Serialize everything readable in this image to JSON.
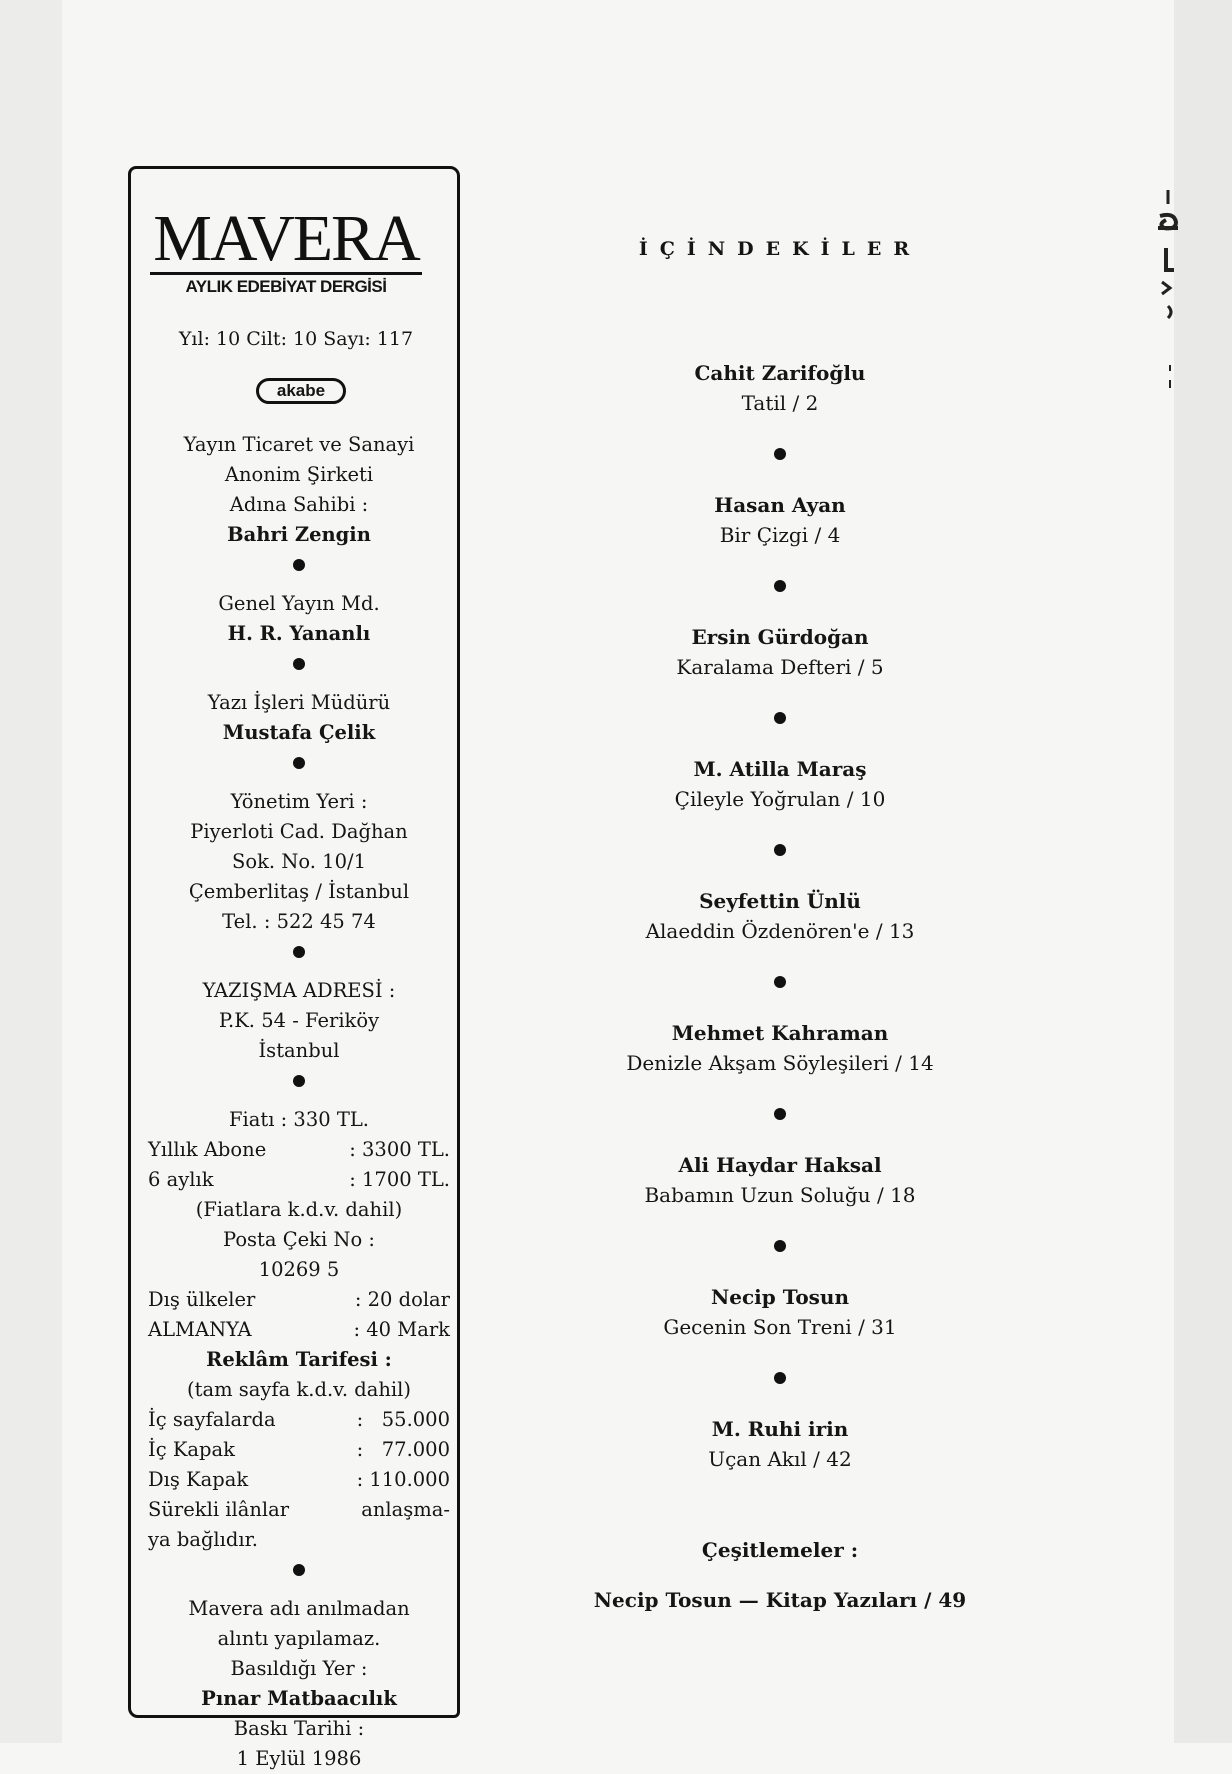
{
  "masthead": {
    "title": "MAVERA",
    "subtitle": "AYLIK EDEBİYAT DERGİSİ",
    "issue": "Yıl: 10 Cilt: 10 Sayı: 117",
    "publisher_logo": "akabe"
  },
  "colophon": {
    "lines": [
      {
        "t": "Yayın Ticaret ve Sanayi"
      },
      {
        "t": "Anonim Şirketi"
      },
      {
        "t": "Adına Sahibi :"
      },
      {
        "t": "Bahri Zengin",
        "b": true
      },
      {
        "dot": true
      },
      {
        "t": "Genel Yayın Md."
      },
      {
        "t": "H. R. Yananlı",
        "b": true
      },
      {
        "dot": true
      },
      {
        "t": "Yazı İşleri Müdürü"
      },
      {
        "t": "Mustafa Çelik",
        "b": true
      },
      {
        "dot": true
      },
      {
        "t": "Yönetim Yeri :"
      },
      {
        "t": "Piyerloti Cad. Dağhan"
      },
      {
        "t": "Sok. No. 10/1"
      },
      {
        "t": "Çemberlitaş / İstanbul"
      },
      {
        "t": "Tel. : 522 45 74"
      },
      {
        "dot": true
      },
      {
        "t": "YAZIŞMA ADRESİ :"
      },
      {
        "t": "P.K. 54 - Feriköy"
      },
      {
        "t": "İstanbul"
      },
      {
        "dot": true
      },
      {
        "t": "Fiatı : 330 TL."
      },
      {
        "l": "Yıllık Abone",
        "r": ": 3300 TL."
      },
      {
        "l": "6 aylık",
        "r": ": 1700 TL."
      },
      {
        "t": "(Fiatlara k.d.v. dahil)"
      },
      {
        "t": "Posta Çeki No :"
      },
      {
        "t": "10269 5"
      },
      {
        "l": "Dış ülkeler",
        "r": ": 20 dolar"
      },
      {
        "l": "ALMANYA",
        "r": ": 40 Mark"
      },
      {
        "t": "Reklâm Tarifesi :",
        "b": true
      },
      {
        "t": "(tam sayfa k.d.v. dahil)"
      },
      {
        "l": "İç sayfalarda",
        "r": ":   55.000"
      },
      {
        "l": "İç Kapak",
        "r": ":   77.000"
      },
      {
        "l": "Dış Kapak",
        "r": ": 110.000"
      },
      {
        "l": "Sürekli ilânlar",
        "r": "anlaşma-"
      },
      {
        "l": "ya bağlıdır.",
        "r": ""
      },
      {
        "dot": true
      },
      {
        "t": "Mavera adı anılmadan"
      },
      {
        "t": "alıntı yapılamaz."
      },
      {
        "t": "Basıldığı Yer :"
      },
      {
        "t": "Pınar Matbaacılık",
        "b": true
      },
      {
        "t": "Baskı Tarihi :"
      },
      {
        "t": "1 Eylül 1986"
      }
    ]
  },
  "contents": {
    "heading": "İÇİNDEKİLER",
    "entries": [
      {
        "author": "Cahit Zarifoğlu",
        "title": "Tatil / 2"
      },
      {
        "author": "Hasan Ayan",
        "title": "Bir Çizgi / 4"
      },
      {
        "author": "Ersin Gürdoğan",
        "title": "Karalama Defteri / 5"
      },
      {
        "author": "M. Atilla Maraş",
        "title": "Çileyle Yoğrulan / 10"
      },
      {
        "author": "Seyfettin Ünlü",
        "title": "Alaeddin Özdenören'e / 13"
      },
      {
        "author": "Mehmet Kahraman",
        "title": "Denizle Akşam Söyleşileri / 14"
      },
      {
        "author": "Ali Haydar Haksal",
        "title": "Babamın Uzun Soluğu / 18"
      },
      {
        "author": "Necip Tosun",
        "title": "Gecenin Son Treni / 31"
      },
      {
        "author": "M. Ruhi irin",
        "title": "Uçan Akıl / 42"
      }
    ],
    "misc_label": "Çeşitlemeler :",
    "misc_entry": "Necip Tosun — Kitap Yazıları / 49"
  }
}
